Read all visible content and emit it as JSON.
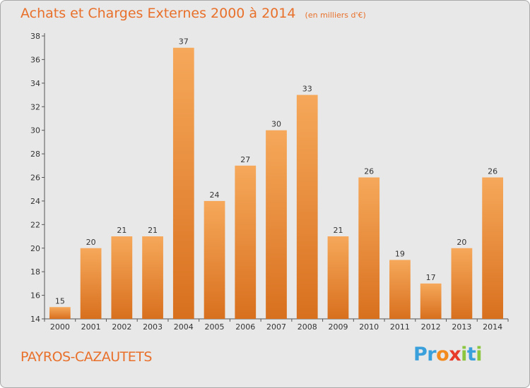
{
  "chart_data": {
    "type": "bar",
    "title": "Achats et Charges Externes 2000 à 2014",
    "unit_note": "(en milliers d'€)",
    "categories": [
      "2000",
      "2001",
      "2002",
      "2003",
      "2004",
      "2005",
      "2006",
      "2007",
      "2008",
      "2009",
      "2010",
      "2011",
      "2012",
      "2013",
      "2014"
    ],
    "values": [
      15,
      20,
      21,
      21,
      37,
      24,
      27,
      30,
      33,
      21,
      26,
      19,
      17,
      20,
      26
    ],
    "xlabel": "",
    "ylabel": "",
    "ylim": [
      14,
      38
    ],
    "yticks": [
      14,
      16,
      18,
      20,
      22,
      24,
      26,
      28,
      30,
      32,
      34,
      36,
      38
    ],
    "grid": false,
    "legend": "none",
    "bar_color": "#f0943c"
  },
  "footer": {
    "commune": "PAYROS-CAZAUTETS",
    "logo": {
      "letters": [
        {
          "ch": "P",
          "color": "#3aa0dc"
        },
        {
          "ch": "r",
          "color": "#3aa0dc"
        },
        {
          "ch": "o",
          "color": "#f28a1e"
        },
        {
          "ch": "x",
          "color": "#e83a2a"
        },
        {
          "ch": "i",
          "color": "#8cc63e"
        },
        {
          "ch": "t",
          "color": "#3aa0dc"
        },
        {
          "ch": "i",
          "color": "#8cc63e"
        }
      ]
    }
  }
}
